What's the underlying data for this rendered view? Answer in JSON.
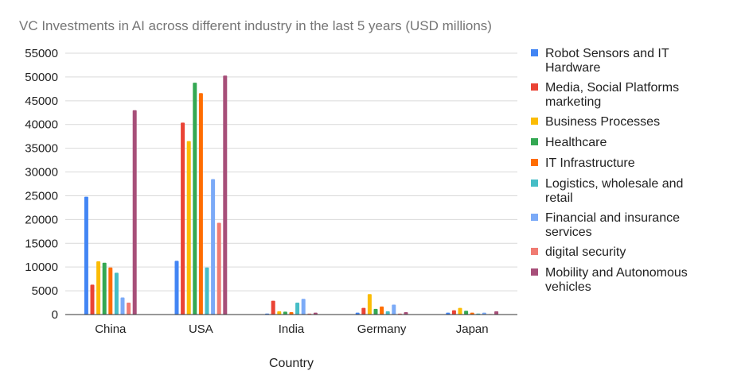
{
  "chart_data": {
    "type": "bar",
    "title": "VC Investments in AI across different industry in the last 5 years (USD millions)",
    "xlabel": "Country",
    "ylabel": "",
    "ylim": [
      0,
      55000
    ],
    "ytick_step": 5000,
    "grid": true,
    "legend_position": "right",
    "categories": [
      "China",
      "USA",
      "India",
      "Germany",
      "Japan"
    ],
    "series": [
      {
        "name": "Robot Sensors and IT Hardware",
        "legend_lines": [
          "Robot Sensors and IT",
          "Hardware"
        ],
        "color": "#4285f4",
        "values": [
          24800,
          11300,
          200,
          400,
          400
        ]
      },
      {
        "name": "Media, Social Platforms marketing",
        "legend_lines": [
          "Media, Social Platforms",
          "marketing"
        ],
        "color": "#ea4335",
        "values": [
          6300,
          40400,
          2900,
          1400,
          900
        ]
      },
      {
        "name": "Business Processes",
        "legend_lines": [
          "Business Processes"
        ],
        "color": "#fbbc04",
        "values": [
          11200,
          36500,
          700,
          4300,
          1400
        ]
      },
      {
        "name": "Healthcare",
        "legend_lines": [
          "Healthcare"
        ],
        "color": "#34a853",
        "values": [
          10900,
          48800,
          600,
          1200,
          800
        ]
      },
      {
        "name": "IT Infrastructure",
        "legend_lines": [
          "IT Infrastructure"
        ],
        "color": "#ff6d01",
        "values": [
          9900,
          46600,
          500,
          1700,
          400
        ]
      },
      {
        "name": "Logistics, wholesale and retail",
        "legend_lines": [
          "Logistics, wholesale and",
          "retail"
        ],
        "color": "#46bdc6",
        "values": [
          8800,
          9900,
          2500,
          700,
          200
        ]
      },
      {
        "name": "Financial and insurance services",
        "legend_lines": [
          "Financial and insurance",
          "services"
        ],
        "color": "#7baaf7",
        "values": [
          3600,
          28500,
          3300,
          2100,
          400
        ]
      },
      {
        "name": "digital security",
        "legend_lines": [
          "digital security"
        ],
        "color": "#f07b72",
        "values": [
          2500,
          19300,
          200,
          200,
          100
        ]
      },
      {
        "name": "Mobility and Autonomous vehicles",
        "legend_lines": [
          "Mobility and Autonomous",
          "vehicles"
        ],
        "color": "#a74f79",
        "values": [
          43000,
          50300,
          400,
          500,
          700
        ]
      }
    ]
  }
}
